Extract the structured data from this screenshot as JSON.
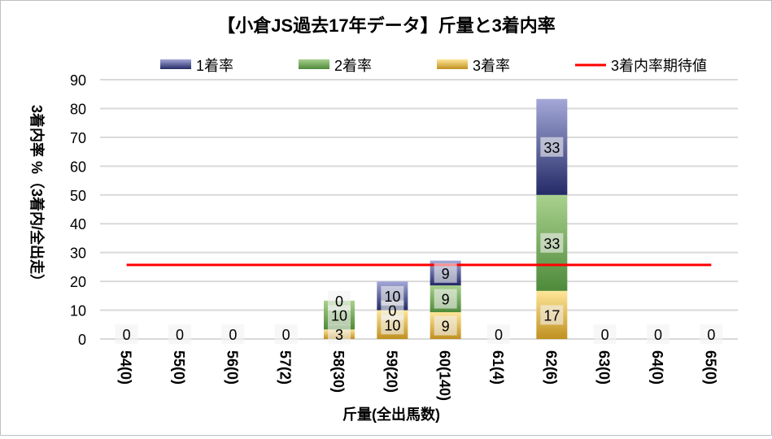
{
  "chart_data": {
    "type": "bar",
    "stacked": true,
    "title": "【小倉JS過去17年データ】斤量と3着内率",
    "xlabel": "斤量(全出馬数)",
    "ylabel": "3着内率 %（3着内/全出走）",
    "ylim": [
      0,
      90
    ],
    "yticks": [
      0,
      10,
      20,
      30,
      40,
      50,
      60,
      70,
      80,
      90
    ],
    "grid": true,
    "legend_position": "top",
    "categories": [
      "54(0)",
      "55(0)",
      "56(0)",
      "57(2)",
      "58(30)",
      "59(20)",
      "60(140)",
      "61(4)",
      "62(6)",
      "63(0)",
      "64(0)",
      "65(0)"
    ],
    "series": [
      {
        "name": "3着率",
        "color": "#d4a73a",
        "values": [
          0,
          0,
          0,
          0,
          3.3,
          10,
          9.3,
          0,
          16.7,
          0,
          0,
          0
        ],
        "labels": [
          "",
          "",
          "",
          "",
          "3",
          "10",
          "9",
          "",
          "17",
          "",
          "",
          ""
        ]
      },
      {
        "name": "2着率",
        "color": "#70a85a",
        "values": [
          0,
          0,
          0,
          0,
          10,
          0,
          9.3,
          0,
          33.3,
          0,
          0,
          0
        ],
        "labels": [
          "",
          "",
          "",
          "",
          "10",
          "0",
          "9",
          "",
          "33",
          "",
          "",
          ""
        ]
      },
      {
        "name": "1着率",
        "color": "#4a5396",
        "values": [
          0,
          0,
          0,
          0,
          0,
          10,
          8.6,
          0,
          33.3,
          0,
          0,
          0
        ],
        "labels": [
          "0",
          "0",
          "0",
          "0",
          "0",
          "10",
          "9",
          "0",
          "33",
          "0",
          "0",
          "0"
        ]
      }
    ],
    "line": {
      "name": "3着内率期待値",
      "color": "#ff0000",
      "value": 25.7
    },
    "legend_order": [
      "1着率",
      "2着率",
      "3着率",
      "3着内率期待値"
    ]
  }
}
